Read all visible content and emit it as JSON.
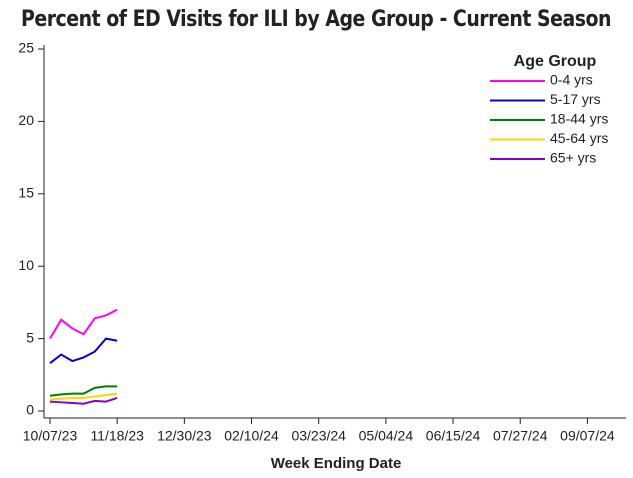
{
  "chart_data": {
    "type": "line",
    "title": "Percent of ED Visits for ILI by Age Group - Current Season",
    "x_label": "Week Ending Date",
    "x": [
      "10/07/23",
      "10/14/23",
      "10/21/23",
      "10/28/23",
      "11/04/23",
      "11/11/23",
      "11/18/23"
    ],
    "xlim": [
      "10/07/23",
      "09/28/24"
    ],
    "xticks": [
      "10/07/23",
      "11/18/23",
      "12/30/23",
      "02/10/24",
      "03/23/24",
      "05/04/24",
      "06/15/24",
      "07/27/24",
      "09/07/24"
    ],
    "ylim": [
      0,
      25
    ],
    "yticks": [
      0,
      5,
      10,
      15,
      20,
      25
    ],
    "legend_title": "Age Group",
    "legend": "top-right",
    "series": [
      {
        "name": "0-4 yrs",
        "color": "#ff00ff",
        "values": [
          5.0,
          6.3,
          5.7,
          5.3,
          6.4,
          6.6,
          7.0
        ]
      },
      {
        "name": "5-17 yrs",
        "color": "#0000dd",
        "values": [
          3.3,
          3.9,
          3.45,
          3.7,
          4.1,
          5.0,
          4.85
        ]
      },
      {
        "name": "18-44 yrs",
        "color": "#008000",
        "values": [
          1.05,
          1.15,
          1.2,
          1.2,
          1.6,
          1.7,
          1.7
        ]
      },
      {
        "name": "45-64 yrs",
        "color": "#ffd700",
        "values": [
          0.8,
          0.85,
          0.9,
          0.9,
          1.0,
          1.1,
          1.2
        ]
      },
      {
        "name": "65+ yrs",
        "color": "#8b00c8",
        "values": [
          0.65,
          0.6,
          0.55,
          0.5,
          0.7,
          0.65,
          0.9
        ]
      }
    ]
  }
}
